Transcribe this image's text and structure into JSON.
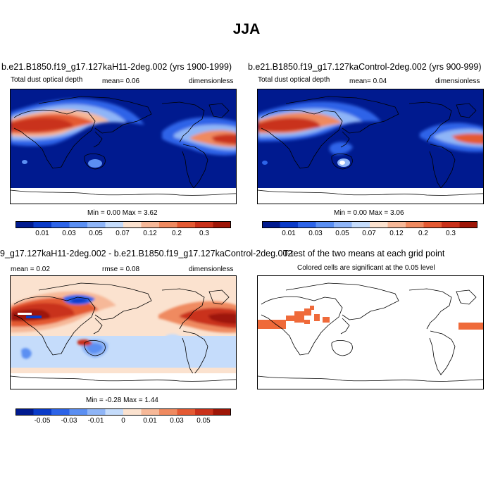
{
  "main_title": "JJA",
  "panels": [
    {
      "title": "b.e21.B1850.f19_g17.127kaH11-2deg.002 (yrs 1900-1999)",
      "left_label": "Total dust optical depth",
      "center_label": "mean=  0.06",
      "right_label": "dimensionless",
      "minmax": "Min =  0.00 Max =  3.62",
      "colorbar_labels": [
        "0.01",
        "0.03",
        "0.05",
        "0.07",
        "0.12",
        "0.2",
        "0.3"
      ]
    },
    {
      "title": "b.e21.B1850.f19_g17.127kaControl-2deg.002 (yrs 900-999)",
      "left_label": "Total dust optical depth",
      "center_label": "mean=  0.04",
      "right_label": "dimensionless",
      "minmax": "Min =  0.00 Max =  3.06",
      "colorbar_labels": [
        "0.01",
        "0.03",
        "0.05",
        "0.07",
        "0.12",
        "0.2",
        "0.3"
      ]
    },
    {
      "title": "9_g17.127kaH11-2deg.002 - b.e21.B1850.f19_g17.127kaControl-2deg.002",
      "left_label": "mean =  0.02",
      "center_label": "rmse =  0.08",
      "right_label": "dimensionless",
      "minmax": "Min =  -0.28 Max =  1.44",
      "colorbar_labels": [
        "-0.05",
        "-0.03",
        "-0.01",
        "0",
        "0.01",
        "0.03",
        "0.05"
      ]
    },
    {
      "title": "T-test of the two means at each grid point",
      "subtitle": "Colored cells are significant at the 0.05 level"
    }
  ],
  "colors": {
    "abs_scale": [
      "#001a8f",
      "#0a3bc8",
      "#2d64e8",
      "#5b8ff2",
      "#8fb5f7",
      "#c5dcfb",
      "#fbe2cf",
      "#f6b898",
      "#ef8a60",
      "#e45a33",
      "#c9311a",
      "#9e1607"
    ],
    "diff_scale": [
      "#001a8f",
      "#0a3bc8",
      "#2d64e8",
      "#5b8ff2",
      "#8fb5f7",
      "#c5dcfb",
      "#fbe2cf",
      "#f6b898",
      "#ef8a60",
      "#e45a33",
      "#c9311a",
      "#9e1607"
    ],
    "significant": "#ef6a3a"
  },
  "chart_data": [
    {
      "type": "heatmap",
      "title": "b.e21.B1850.f19_g17.127kaH11-2deg.002 (yrs 1900-1999)",
      "variable": "Total dust optical depth",
      "units": "dimensionless",
      "mean": 0.06,
      "min": 0.0,
      "max": 3.62,
      "contour_levels": [
        0.01,
        0.03,
        0.05,
        0.07,
        0.12,
        0.2,
        0.3
      ],
      "season": "JJA"
    },
    {
      "type": "heatmap",
      "title": "b.e21.B1850.f19_g17.127kaControl-2deg.002 (yrs 900-999)",
      "variable": "Total dust optical depth",
      "units": "dimensionless",
      "mean": 0.04,
      "min": 0.0,
      "max": 3.06,
      "contour_levels": [
        0.01,
        0.03,
        0.05,
        0.07,
        0.12,
        0.2,
        0.3
      ],
      "season": "JJA"
    },
    {
      "type": "heatmap",
      "title": "9_g17.127kaH11-2deg.002 - b.e21.B1850.f19_g17.127kaControl-2deg.002",
      "units": "dimensionless",
      "mean": 0.02,
      "rmse": 0.08,
      "min": -0.28,
      "max": 1.44,
      "contour_levels": [
        -0.05,
        -0.03,
        -0.01,
        0,
        0.01,
        0.03,
        0.05
      ],
      "season": "JJA"
    },
    {
      "type": "heatmap",
      "title": "T-test of the two means at each grid point",
      "subtitle": "Colored cells are significant at the 0.05 level",
      "significance_level": 0.05
    }
  ]
}
